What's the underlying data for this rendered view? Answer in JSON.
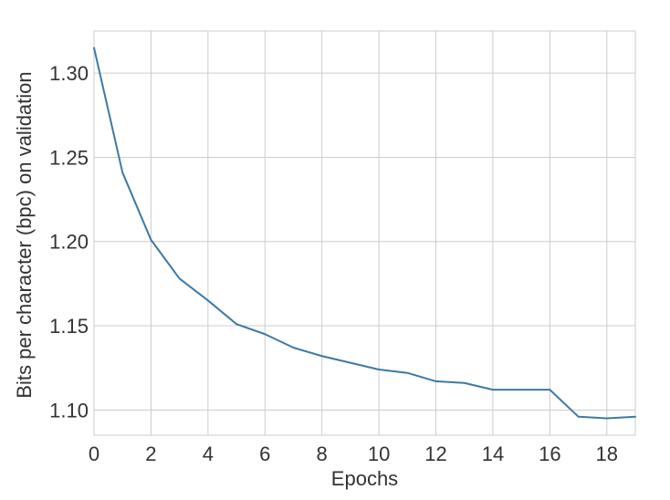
{
  "chart_data": {
    "type": "line",
    "title": "",
    "xlabel": "Epochs",
    "ylabel": "Bits per character (bpc) on validation",
    "xlim": [
      0,
      19
    ],
    "ylim": [
      1.085,
      1.325
    ],
    "x_ticks": [
      0,
      2,
      4,
      6,
      8,
      10,
      12,
      14,
      16,
      18
    ],
    "y_ticks": [
      1.1,
      1.15,
      1.2,
      1.25,
      1.3
    ],
    "y_tick_labels": [
      "1.10",
      "1.15",
      "1.20",
      "1.25",
      "1.30"
    ],
    "x_tick_labels": [
      "0",
      "2",
      "4",
      "6",
      "8",
      "10",
      "12",
      "14",
      "16",
      "18"
    ],
    "grid": true,
    "legend": "none",
    "series": [
      {
        "color": "#3d79a6",
        "x": [
          0,
          1,
          2,
          3,
          4,
          5,
          6,
          7,
          8,
          9,
          10,
          11,
          12,
          13,
          14,
          15,
          16,
          17,
          18,
          19
        ],
        "y": [
          1.315,
          1.241,
          1.201,
          1.178,
          1.165,
          1.151,
          1.145,
          1.137,
          1.132,
          1.128,
          1.124,
          1.122,
          1.117,
          1.116,
          1.112,
          1.112,
          1.112,
          1.096,
          1.095,
          1.096
        ]
      }
    ]
  }
}
